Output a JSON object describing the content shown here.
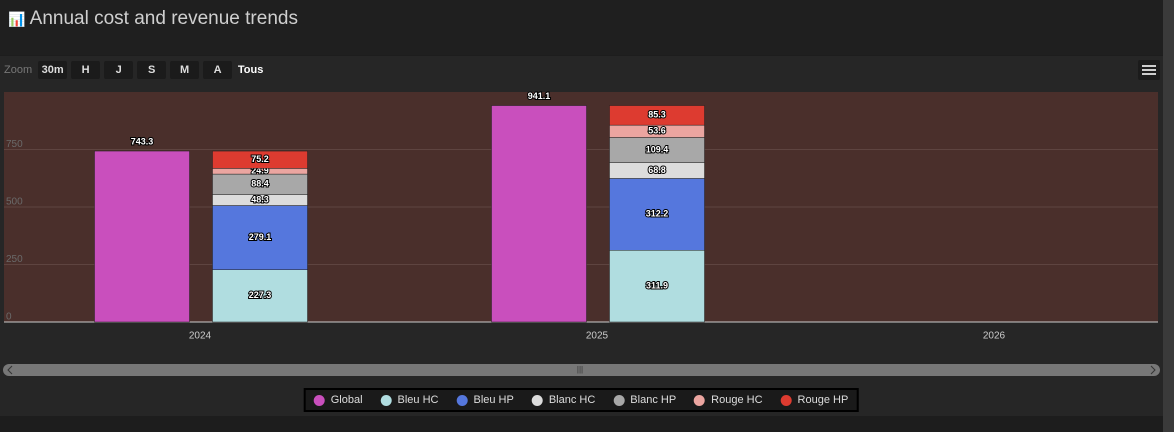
{
  "chart_data": {
    "type": "bar",
    "title": "Annual cost and revenue trends",
    "zoom_label": "Zoom",
    "zoom_buttons": [
      "30m",
      "H",
      "J",
      "S",
      "M",
      "A",
      "Tous"
    ],
    "categories": [
      "2024",
      "2025",
      "2026"
    ],
    "series": [
      {
        "name": "Global",
        "color": "#c94fbd",
        "values": [
          743.3,
          941.1,
          null
        ]
      },
      {
        "name": "Bleu HC",
        "color": "#b0dde0",
        "values": [
          227.3,
          311.9,
          null
        ]
      },
      {
        "name": "Bleu HP",
        "color": "#5577dd",
        "values": [
          279.1,
          312.2,
          null
        ]
      },
      {
        "name": "Blanc HC",
        "color": "#dcdcdc",
        "values": [
          48.3,
          68.8,
          null
        ]
      },
      {
        "name": "Blanc HP",
        "color": "#a8a8a8",
        "values": [
          88.4,
          109.4,
          null
        ]
      },
      {
        "name": "Rouge HC",
        "color": "#eba5a0",
        "values": [
          24.9,
          53.6,
          null
        ]
      },
      {
        "name": "Rouge HP",
        "color": "#dd3b30",
        "values": [
          75.2,
          85.3,
          null
        ]
      }
    ],
    "ylim": [
      0,
      1000
    ],
    "yticks": [
      0,
      250,
      500,
      750
    ],
    "grid": true
  }
}
